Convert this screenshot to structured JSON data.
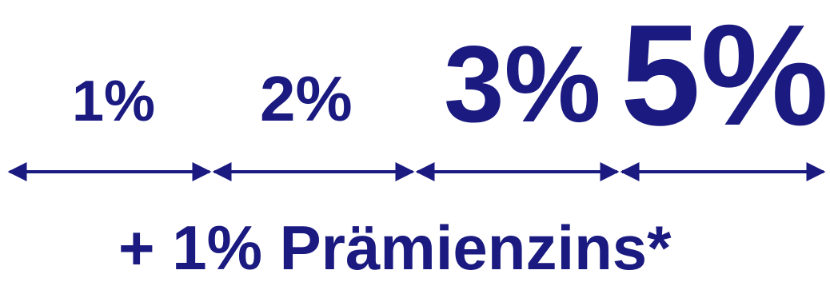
{
  "tiers": [
    {
      "label": "1%"
    },
    {
      "label": "2%"
    },
    {
      "label": "3%"
    },
    {
      "label": "5%"
    }
  ],
  "bonus_text": "+ 1% Prämienzins*",
  "colors": {
    "text": "#1a1a80",
    "arrow": "#1a1a80",
    "background": "#ffffff"
  }
}
